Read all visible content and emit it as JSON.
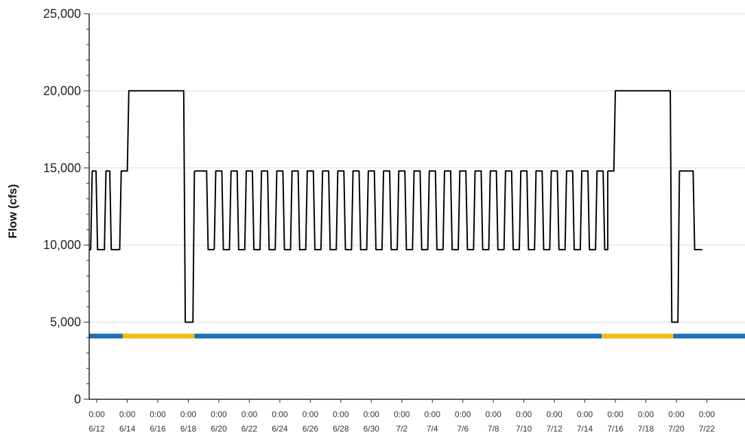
{
  "chart_data": {
    "type": "line",
    "title": "",
    "xlabel": "",
    "ylabel": "Flow (cfs)",
    "ylim": [
      0,
      25000
    ],
    "xlim": [
      "6/11 12:00",
      "7/24 12:00"
    ],
    "grid": true,
    "y_ticks": [
      "0",
      "5,000",
      "10,000",
      "15,000",
      "20,000",
      "25,000"
    ],
    "y_tick_values": [
      0,
      5000,
      10000,
      15000,
      20000,
      25000
    ],
    "x_ticks": [
      {
        "time": "0:00",
        "date": "6/12"
      },
      {
        "time": "0:00",
        "date": "6/14"
      },
      {
        "time": "0:00",
        "date": "6/16"
      },
      {
        "time": "0:00",
        "date": "6/18"
      },
      {
        "time": "0:00",
        "date": "6/20"
      },
      {
        "time": "0:00",
        "date": "6/22"
      },
      {
        "time": "0:00",
        "date": "6/24"
      },
      {
        "time": "0:00",
        "date": "6/26"
      },
      {
        "time": "0:00",
        "date": "6/28"
      },
      {
        "time": "0:00",
        "date": "6/30"
      },
      {
        "time": "0:00",
        "date": "7/2"
      },
      {
        "time": "0:00",
        "date": "7/4"
      },
      {
        "time": "0:00",
        "date": "7/6"
      },
      {
        "time": "0:00",
        "date": "7/8"
      },
      {
        "time": "0:00",
        "date": "7/10"
      },
      {
        "time": "0:00",
        "date": "7/12"
      },
      {
        "time": "0:00",
        "date": "7/14"
      },
      {
        "time": "0:00",
        "date": "7/16"
      },
      {
        "time": "0:00",
        "date": "7/18"
      },
      {
        "time": "0:00",
        "date": "7/20"
      },
      {
        "time": "0:00",
        "date": "7/22"
      }
    ],
    "x_tick_offsets": [
      0.5,
      2.5,
      4.5,
      6.5,
      8.5,
      10.5,
      12.5,
      14.5,
      16.5,
      18.5,
      20.5,
      22.5,
      24.5,
      26.5,
      28.5,
      30.5,
      32.5,
      34.5,
      36.5,
      38.5,
      40.5
    ],
    "daily_cycle": {
      "low": 9700,
      "high": 14800
    },
    "events": [
      {
        "start": "6/14",
        "end": "6/18",
        "peak": 20000,
        "low": 5000
      },
      {
        "start": "7/16",
        "end": "7/20",
        "peak": 20000,
        "low": 5000
      }
    ],
    "series": [
      {
        "color": "#000000",
        "segments": [
          [
            [
              0.0,
              9700
            ],
            [
              0.1,
              9700
            ],
            [
              0.2,
              14800
            ],
            [
              0.45,
              14800
            ],
            [
              0.55,
              9700
            ],
            [
              0.9,
              9700
            ],
            [
              1.0,
              9700
            ],
            [
              1.1,
              14800
            ],
            [
              1.35,
              14800
            ],
            [
              1.45,
              9700
            ],
            [
              1.9,
              9700
            ],
            [
              2.0,
              9700
            ],
            [
              2.1,
              14800
            ],
            [
              2.5,
              14800
            ],
            [
              2.6,
              20000
            ],
            [
              6.2,
              20000
            ],
            [
              6.3,
              5000
            ],
            [
              6.8,
              5000
            ],
            [
              6.9,
              14800
            ]
          ],
          [
            [
              6.9,
              14800
            ],
            [
              7.7,
              14800
            ],
            [
              7.8,
              9700
            ],
            [
              8.2,
              9700
            ]
          ],
          [
            [
              34.0,
              14800
            ],
            [
              34.4,
              14800
            ],
            [
              34.5,
              20000
            ],
            [
              38.1,
              20000
            ],
            [
              38.2,
              5000
            ],
            [
              38.6,
              5000
            ],
            [
              38.7,
              14800
            ],
            [
              39.6,
              14800
            ],
            [
              39.7,
              9700
            ],
            [
              40.2,
              9700
            ]
          ]
        ]
      }
    ],
    "status_bar": {
      "y": 4100,
      "colors": {
        "normal": "#1f6fb8",
        "event": "#f2bb18"
      },
      "segments": [
        {
          "state": "normal",
          "from": 0.0,
          "to": 2.2
        },
        {
          "state": "event",
          "from": 2.2,
          "to": 6.9
        },
        {
          "state": "normal",
          "from": 6.9,
          "to": 33.6
        },
        {
          "state": "event",
          "from": 33.6,
          "to": 38.3
        },
        {
          "state": "normal",
          "from": 38.3,
          "to": 43.0
        }
      ]
    },
    "colors": {
      "line": "#000000",
      "grid": "#d9d9d9",
      "axis": "#222222"
    }
  }
}
